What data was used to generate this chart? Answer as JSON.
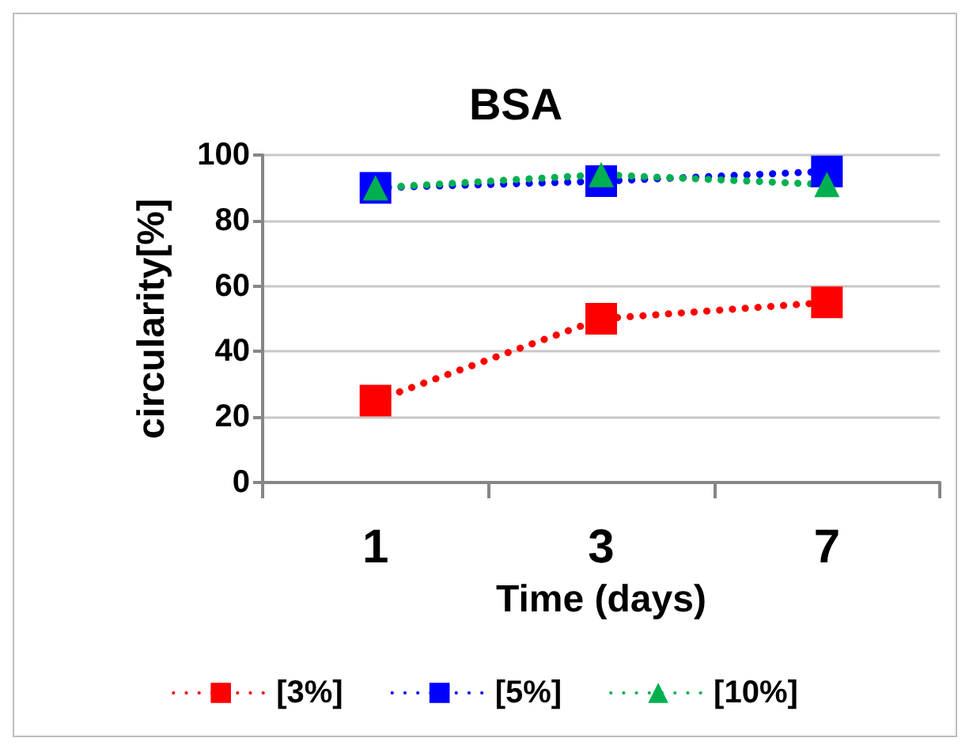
{
  "chart_data": {
    "type": "line",
    "title": "BSA",
    "xlabel": "Time (days)",
    "ylabel": "circularity[%]",
    "categories": [
      "1",
      "3",
      "7"
    ],
    "series": [
      {
        "name": "[3%]",
        "color": "#ff0000",
        "marker": "square",
        "values": [
          25,
          50,
          55
        ]
      },
      {
        "name": "[5%]",
        "color": "#0000ff",
        "marker": "square",
        "values": [
          90,
          92,
          95
        ]
      },
      {
        "name": "[10%]",
        "color": "#00b050",
        "marker": "triangle",
        "values": [
          90,
          94,
          91
        ]
      }
    ],
    "ylim": [
      0,
      100
    ],
    "yticks": [
      0,
      20,
      40,
      60,
      80,
      100
    ],
    "grid": "y",
    "legend": "bottom",
    "line_style": "dotted"
  }
}
